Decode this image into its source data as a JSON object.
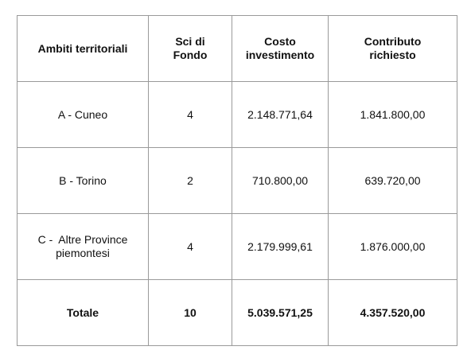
{
  "table": {
    "headers": {
      "col1": "Ambiti territoriali",
      "col2_line1": "Sci di",
      "col2_line2": "Fondo",
      "col3_line1": "Costo",
      "col3_line2": "investimento",
      "col4_line1": "Contributo",
      "col4_line2": "richiesto"
    },
    "rows": [
      {
        "ambito_line1": "A - Cuneo",
        "ambito_line2": "",
        "sci_di_fondo": "4",
        "costo": "2.148.771,64",
        "contributo": "1.841.800,00"
      },
      {
        "ambito_line1": "B - Torino",
        "ambito_line2": "",
        "sci_di_fondo": "2",
        "costo": "710.800,00",
        "contributo": "639.720,00"
      },
      {
        "ambito_line1": "C -  Altre Province",
        "ambito_line2": "piemontesi",
        "sci_di_fondo": "4",
        "costo": "2.179.999,61",
        "contributo": "1.876.000,00"
      }
    ],
    "total": {
      "label": "Totale",
      "sci_di_fondo": "10",
      "costo": "5.039.571,25",
      "contributo": "4.357.520,00"
    }
  }
}
